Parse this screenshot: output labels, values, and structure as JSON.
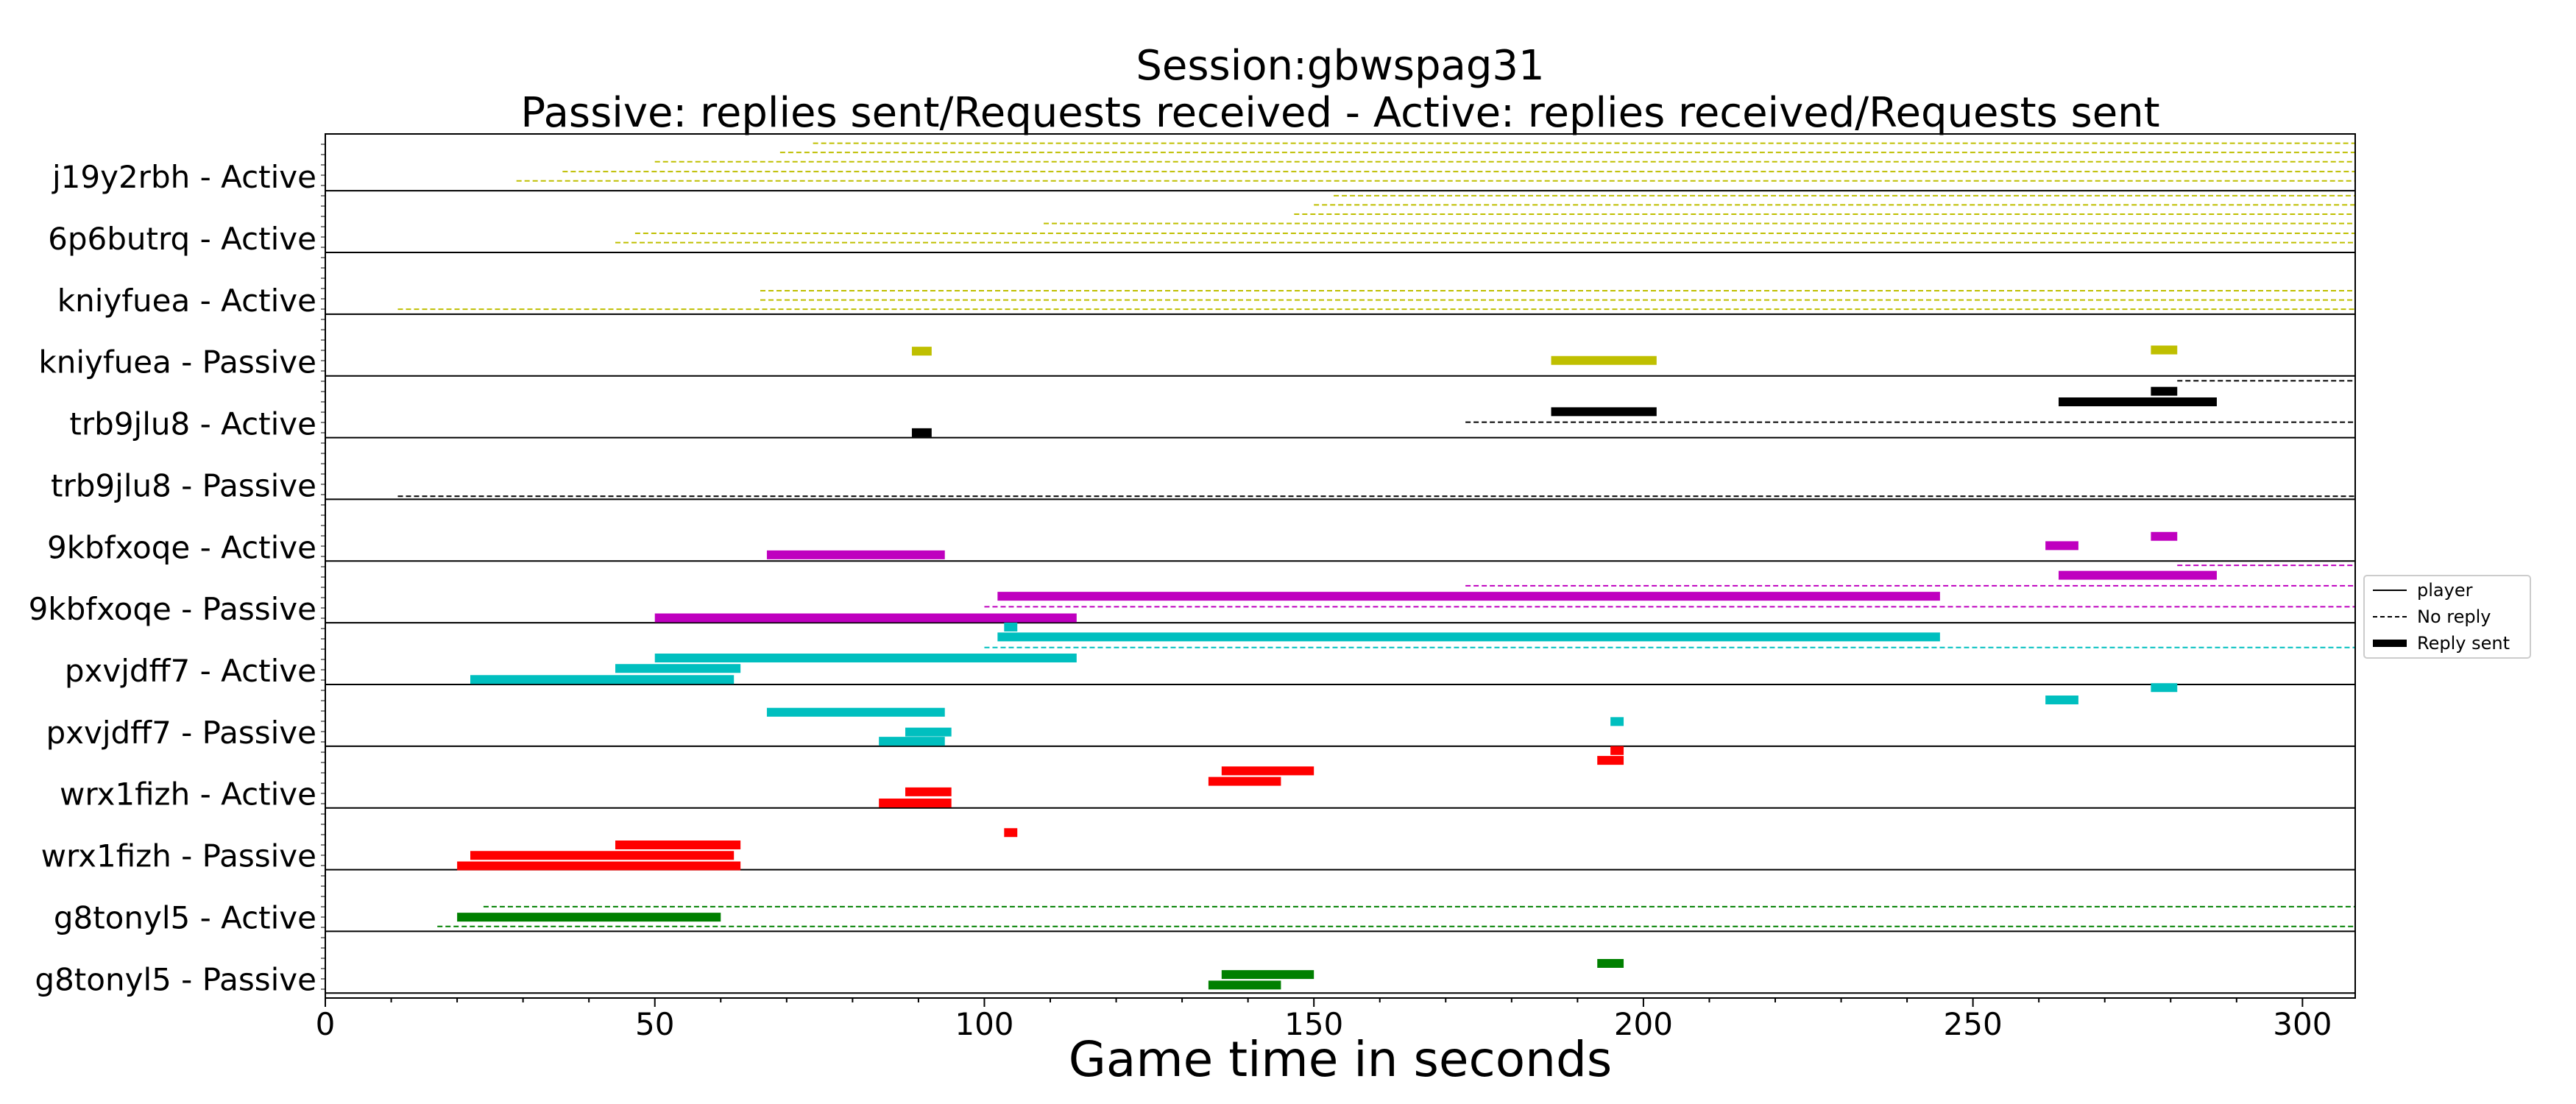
{
  "chart_data": {
    "type": "timeline",
    "title": "Session:gbwspag31",
    "subtitle": "Passive: replies sent/Requests received - Active: replies received/Requests sent",
    "xlabel": "Game time in seconds",
    "ylabel": "",
    "xlim": [
      0,
      308
    ],
    "xticks": [
      0,
      50,
      100,
      150,
      200,
      250,
      300
    ],
    "grid": false,
    "legend_position": "right",
    "legend": [
      {
        "label": "player",
        "style": "solid"
      },
      {
        "label": "No reply",
        "style": "dashed"
      },
      {
        "label": "Reply sent",
        "style": "thick"
      }
    ],
    "colors": {
      "j19y2rbh": "#bfbf00",
      "kniyfuea": "#bfbf00",
      "trb9jlu8": "#000000",
      "9kbfxoqe": "#bf00bf",
      "pxvjdff7": "#00bfbf",
      "wrx1fizh": "#ff0000",
      "g8tonyl5": "#008000"
    },
    "rows": [
      "j19y2rbh - Active",
      "6p6butrq - Active",
      "kniyfuea - Active",
      "kniyfuea - Passive",
      "trb9jlu8 - Active",
      "trb9jlu8 - Passive",
      "9kbfxoqe - Active",
      "9kbfxoqe - Passive",
      "pxvjdff7 - Active",
      "pxvjdff7 - Passive",
      "wrx1fizh - Active",
      "wrx1fizh - Passive",
      "g8tonyl5 - Active",
      "g8tonyl5 - Passive"
    ],
    "segments": [
      {
        "row": 0,
        "offset": 0.92,
        "start": 139,
        "end": 308,
        "color": "#bfbf00",
        "kind": "dashed"
      },
      {
        "row": 0,
        "offset": 0.77,
        "start": 74,
        "end": 308,
        "color": "#bfbf00",
        "kind": "dashed"
      },
      {
        "row": 0,
        "offset": 0.62,
        "start": 69,
        "end": 308,
        "color": "#bfbf00",
        "kind": "dashed"
      },
      {
        "row": 0,
        "offset": 0.47,
        "start": 50,
        "end": 308,
        "color": "#bfbf00",
        "kind": "dashed"
      },
      {
        "row": 0,
        "offset": 0.31,
        "start": 36,
        "end": 308,
        "color": "#bfbf00",
        "kind": "dashed"
      },
      {
        "row": 0,
        "offset": 0.16,
        "start": 29,
        "end": 308,
        "color": "#bfbf00",
        "kind": "dashed"
      },
      {
        "row": 1,
        "offset": 0.92,
        "start": 153,
        "end": 308,
        "color": "#bfbf00",
        "kind": "dashed"
      },
      {
        "row": 1,
        "offset": 0.77,
        "start": 150,
        "end": 308,
        "color": "#bfbf00",
        "kind": "dashed"
      },
      {
        "row": 1,
        "offset": 0.62,
        "start": 147,
        "end": 308,
        "color": "#bfbf00",
        "kind": "dashed"
      },
      {
        "row": 1,
        "offset": 0.47,
        "start": 109,
        "end": 308,
        "color": "#bfbf00",
        "kind": "dashed"
      },
      {
        "row": 1,
        "offset": 0.31,
        "start": 47,
        "end": 308,
        "color": "#bfbf00",
        "kind": "dashed"
      },
      {
        "row": 1,
        "offset": 0.16,
        "start": 44,
        "end": 308,
        "color": "#bfbf00",
        "kind": "dashed"
      },
      {
        "row": 2,
        "offset": 0.38,
        "start": 66,
        "end": 308,
        "color": "#bfbf00",
        "kind": "dashed"
      },
      {
        "row": 2,
        "offset": 0.23,
        "start": 66,
        "end": 308,
        "color": "#bfbf00",
        "kind": "dashed"
      },
      {
        "row": 2,
        "offset": 0.08,
        "start": 11,
        "end": 308,
        "color": "#bfbf00",
        "kind": "dashed"
      },
      {
        "row": 3,
        "offset": 0.4,
        "start": 89,
        "end": 92,
        "color": "#bfbf00",
        "kind": "thick"
      },
      {
        "row": 3,
        "offset": 0.25,
        "start": 186,
        "end": 202,
        "color": "#bfbf00",
        "kind": "thick"
      },
      {
        "row": 3,
        "offset": 0.42,
        "start": 277,
        "end": 281,
        "color": "#bfbf00",
        "kind": "thick"
      },
      {
        "row": 3,
        "offset": -0.08,
        "start": 281,
        "end": 308,
        "color": "#000000",
        "kind": "dashed"
      },
      {
        "row": 4,
        "offset": 0.75,
        "start": 277,
        "end": 281,
        "color": "#000000",
        "kind": "thick"
      },
      {
        "row": 4,
        "offset": 0.58,
        "start": 263,
        "end": 287,
        "color": "#000000",
        "kind": "thick"
      },
      {
        "row": 4,
        "offset": 0.42,
        "start": 186,
        "end": 202,
        "color": "#000000",
        "kind": "thick"
      },
      {
        "row": 4,
        "offset": 0.25,
        "start": 173,
        "end": 308,
        "color": "#000000",
        "kind": "dashed"
      },
      {
        "row": 4,
        "offset": 0.08,
        "start": 89,
        "end": 92,
        "color": "#000000",
        "kind": "thick"
      },
      {
        "row": 5,
        "offset": 0.05,
        "start": 11,
        "end": 308,
        "color": "#000000",
        "kind": "dashed"
      },
      {
        "row": 6,
        "offset": 0.4,
        "start": 277,
        "end": 281,
        "color": "#bf00bf",
        "kind": "thick"
      },
      {
        "row": 6,
        "offset": 0.25,
        "start": 261,
        "end": 266,
        "color": "#bf00bf",
        "kind": "thick"
      },
      {
        "row": 6,
        "offset": 0.1,
        "start": 67,
        "end": 94,
        "color": "#bf00bf",
        "kind": "thick"
      },
      {
        "row": 7,
        "offset": 0.93,
        "start": 281,
        "end": 308,
        "color": "#bf00bf",
        "kind": "dashed"
      },
      {
        "row": 7,
        "offset": 0.77,
        "start": 263,
        "end": 287,
        "color": "#bf00bf",
        "kind": "thick"
      },
      {
        "row": 7,
        "offset": 0.6,
        "start": 173,
        "end": 308,
        "color": "#bf00bf",
        "kind": "dashed"
      },
      {
        "row": 7,
        "offset": 0.43,
        "start": 102,
        "end": 245,
        "color": "#bf00bf",
        "kind": "thick"
      },
      {
        "row": 7,
        "offset": 0.26,
        "start": 100,
        "end": 308,
        "color": "#bf00bf",
        "kind": "dashed"
      },
      {
        "row": 7,
        "offset": 0.08,
        "start": 50,
        "end": 114,
        "color": "#bf00bf",
        "kind": "thick"
      },
      {
        "row": 8,
        "offset": 0.93,
        "start": 103,
        "end": 105,
        "color": "#00bfbf",
        "kind": "thick"
      },
      {
        "row": 8,
        "offset": 0.77,
        "start": 102,
        "end": 245,
        "color": "#00bfbf",
        "kind": "thick"
      },
      {
        "row": 8,
        "offset": 0.6,
        "start": 100,
        "end": 308,
        "color": "#00bfbf",
        "kind": "dashed"
      },
      {
        "row": 8,
        "offset": 0.43,
        "start": 50,
        "end": 114,
        "color": "#00bfbf",
        "kind": "thick"
      },
      {
        "row": 8,
        "offset": 0.26,
        "start": 44,
        "end": 63,
        "color": "#00bfbf",
        "kind": "thick"
      },
      {
        "row": 8,
        "offset": 0.08,
        "start": 22,
        "end": 62,
        "color": "#00bfbf",
        "kind": "thick"
      },
      {
        "row": 9,
        "offset": 0.95,
        "start": 277,
        "end": 281,
        "color": "#00bfbf",
        "kind": "thick"
      },
      {
        "row": 9,
        "offset": 0.75,
        "start": 261,
        "end": 266,
        "color": "#00bfbf",
        "kind": "thick"
      },
      {
        "row": 9,
        "offset": 0.55,
        "start": 67,
        "end": 94,
        "color": "#00bfbf",
        "kind": "thick"
      },
      {
        "row": 9,
        "offset": 0.4,
        "start": 195,
        "end": 197,
        "color": "#00bfbf",
        "kind": "thick"
      },
      {
        "row": 9,
        "offset": 0.23,
        "start": 88,
        "end": 95,
        "color": "#00bfbf",
        "kind": "thick"
      },
      {
        "row": 9,
        "offset": 0.08,
        "start": 84,
        "end": 94,
        "color": "#00bfbf",
        "kind": "thick"
      },
      {
        "row": 10,
        "offset": 0.93,
        "start": 195,
        "end": 197,
        "color": "#ff0000",
        "kind": "thick"
      },
      {
        "row": 10,
        "offset": 0.77,
        "start": 193,
        "end": 197,
        "color": "#ff0000",
        "kind": "thick"
      },
      {
        "row": 10,
        "offset": 0.6,
        "start": 136,
        "end": 150,
        "color": "#ff0000",
        "kind": "thick"
      },
      {
        "row": 10,
        "offset": 0.43,
        "start": 134,
        "end": 145,
        "color": "#ff0000",
        "kind": "thick"
      },
      {
        "row": 10,
        "offset": 0.26,
        "start": 88,
        "end": 95,
        "color": "#ff0000",
        "kind": "thick"
      },
      {
        "row": 10,
        "offset": 0.08,
        "start": 84,
        "end": 95,
        "color": "#ff0000",
        "kind": "thick"
      },
      {
        "row": 11,
        "offset": 0.6,
        "start": 103,
        "end": 105,
        "color": "#ff0000",
        "kind": "thick"
      },
      {
        "row": 11,
        "offset": 0.4,
        "start": 44,
        "end": 63,
        "color": "#ff0000",
        "kind": "thick"
      },
      {
        "row": 11,
        "offset": 0.23,
        "start": 22,
        "end": 62,
        "color": "#ff0000",
        "kind": "thick"
      },
      {
        "row": 11,
        "offset": 0.06,
        "start": 20,
        "end": 63,
        "color": "#ff0000",
        "kind": "thick"
      },
      {
        "row": 12,
        "offset": 0.4,
        "start": 24,
        "end": 308,
        "color": "#008000",
        "kind": "dashed"
      },
      {
        "row": 12,
        "offset": 0.23,
        "start": 20,
        "end": 60,
        "color": "#008000",
        "kind": "thick"
      },
      {
        "row": 12,
        "offset": 0.08,
        "start": 17,
        "end": 308,
        "color": "#008000",
        "kind": "dashed"
      },
      {
        "row": 13,
        "offset": 0.48,
        "start": 193,
        "end": 197,
        "color": "#008000",
        "kind": "thick"
      },
      {
        "row": 13,
        "offset": 0.3,
        "start": 136,
        "end": 150,
        "color": "#008000",
        "kind": "thick"
      },
      {
        "row": 13,
        "offset": 0.13,
        "start": 134,
        "end": 145,
        "color": "#008000",
        "kind": "thick"
      }
    ]
  }
}
